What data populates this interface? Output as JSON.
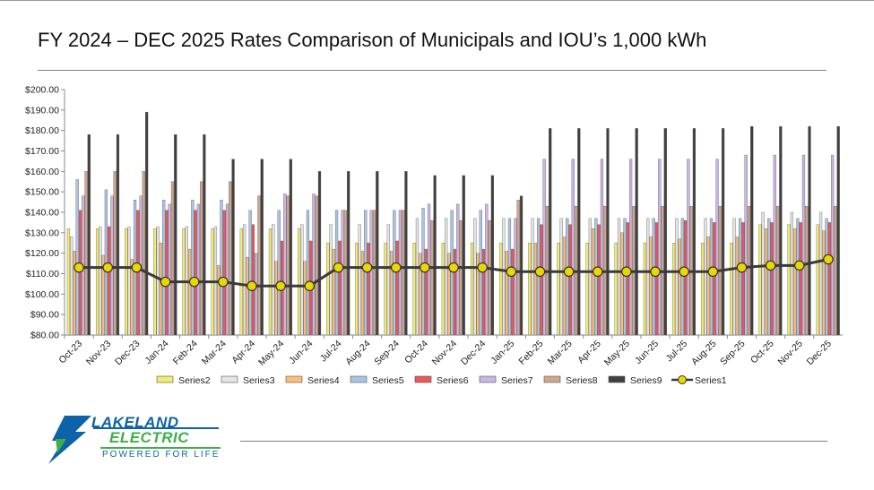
{
  "page": {
    "title": "FY 2024 – DEC 2025 Rates Comparison of Municipals and IOU’s 1,000 kWh"
  },
  "logo": {
    "line1": "LAKELAND",
    "line2": "ELECTRIC",
    "tagline": "POWERED FOR LIFE",
    "colors": {
      "blue": "#0d62a8",
      "green": "#3fae49"
    }
  },
  "chart_data": {
    "type": "bar",
    "ylim": [
      80,
      200
    ],
    "y_ticks": [
      "$80.00",
      "$90.00",
      "$100.00",
      "$110.00",
      "$120.00",
      "$130.00",
      "$140.00",
      "$150.00",
      "$160.00",
      "$170.00",
      "$180.00",
      "$190.00",
      "$200.00"
    ],
    "grid": false,
    "legend_position": "bottom",
    "categories": [
      "Oct-23",
      "Nov-23",
      "Dec-23",
      "Jan-24",
      "Feb-24",
      "Mar-24",
      "Apr-24",
      "May-24",
      "Jun-24",
      "Jul-24",
      "Aug-24",
      "Sep-24",
      "Oct-24",
      "Nov-24",
      "Dec-24",
      "Jan-25",
      "Feb-25",
      "Mar-25",
      "Apr-25",
      "May-25",
      "Jun-25",
      "Jul-25",
      "Aug-25",
      "Sep-25",
      "Oct-25",
      "Nov-25",
      "Dec-25"
    ],
    "series": [
      {
        "name": "Series2",
        "kind": "bar",
        "color": "#f2ec6e",
        "values": [
          132,
          132,
          132,
          132,
          132,
          132,
          132,
          132,
          132,
          125,
          125,
          125,
          125,
          125,
          125,
          125,
          125,
          125,
          125,
          125,
          125,
          125,
          125,
          125,
          134,
          134,
          134
        ]
      },
      {
        "name": "Series3",
        "kind": "bar",
        "color": "#e4e4e4",
        "values": [
          128,
          133,
          133,
          133,
          133,
          133,
          134,
          134,
          134,
          134,
          134,
          134,
          137,
          137,
          137,
          137,
          137,
          137,
          137,
          137,
          137,
          137,
          137,
          137,
          140,
          140,
          140
        ]
      },
      {
        "name": "Series4",
        "kind": "bar",
        "color": "#f9be78",
        "values": [
          121,
          119,
          117,
          125,
          122,
          114,
          118,
          116,
          116,
          122,
          121,
          121,
          120,
          120,
          120,
          121,
          125,
          128,
          132,
          130,
          128,
          127,
          128,
          128,
          132,
          132,
          131
        ]
      },
      {
        "name": "Series5",
        "kind": "bar",
        "color": "#a9c4e2",
        "values": [
          156,
          151,
          146,
          146,
          146,
          146,
          141,
          141,
          141,
          141,
          141,
          141,
          142,
          141,
          141,
          137,
          137,
          137,
          137,
          137,
          137,
          137,
          137,
          137,
          137,
          137,
          137
        ]
      },
      {
        "name": "Series6",
        "kind": "bar",
        "color": "#e9575a",
        "values": [
          141,
          133,
          141,
          141,
          141,
          141,
          134,
          126,
          126,
          126,
          125,
          126,
          122,
          122,
          122,
          122,
          134,
          134,
          134,
          135,
          135,
          136,
          135,
          135,
          135,
          135,
          135
        ]
      },
      {
        "name": "Series7",
        "kind": "bar",
        "color": "#c9b5e6",
        "values": [
          148,
          148,
          148,
          144,
          144,
          144,
          120,
          149,
          149,
          141,
          141,
          141,
          144,
          144,
          144,
          137,
          166,
          166,
          166,
          166,
          166,
          166,
          166,
          168,
          168,
          168,
          168
        ]
      },
      {
        "name": "Series8",
        "kind": "bar",
        "color": "#cfa58c",
        "values": [
          160,
          160,
          160,
          155,
          155,
          155,
          148,
          148,
          148,
          141,
          141,
          141,
          136,
          136,
          136,
          146,
          143,
          143,
          143,
          143,
          143,
          143,
          143,
          143,
          143,
          143,
          143
        ]
      },
      {
        "name": "Series9",
        "kind": "bar",
        "color": "#404040",
        "values": [
          178,
          178,
          189,
          178,
          178,
          166,
          166,
          166,
          160,
          160,
          160,
          160,
          158,
          158,
          158,
          148,
          181,
          181,
          181,
          181,
          181,
          181,
          181,
          182,
          182,
          182,
          182
        ]
      },
      {
        "name": "Series1",
        "kind": "line",
        "color": "#e8d800",
        "line_color": "#3a3a3a",
        "values": [
          113,
          113,
          113,
          106,
          106,
          106,
          104,
          104,
          104,
          113,
          113,
          113,
          113,
          113,
          113,
          111,
          111,
          111,
          111,
          111,
          111,
          111,
          111,
          113,
          114,
          114,
          117
        ]
      }
    ]
  }
}
